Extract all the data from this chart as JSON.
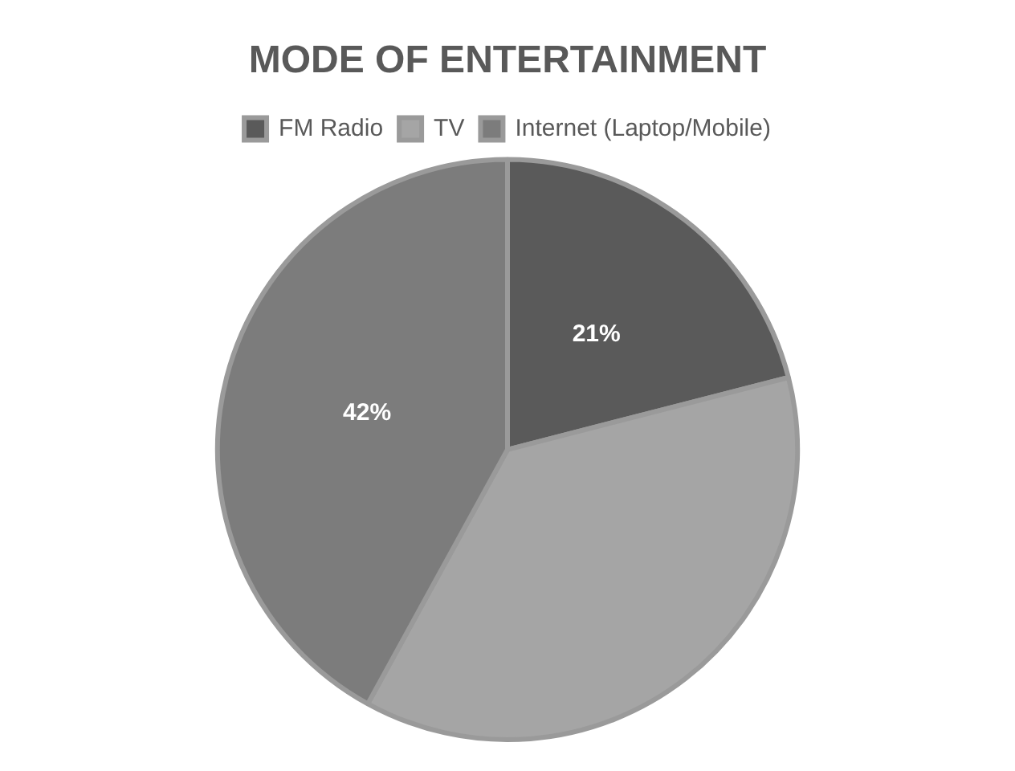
{
  "chart_data": {
    "type": "pie",
    "title": "MODE OF ENTERTAINMENT",
    "categories": [
      "FM Radio",
      "TV",
      "Internet (Laptop/Mobile)"
    ],
    "values": [
      21,
      37,
      42
    ],
    "colors": [
      "#5a5a5a",
      "#a5a5a5",
      "#7c7c7c"
    ],
    "value_labels": [
      "21%",
      null,
      "42%"
    ],
    "legend": "top"
  }
}
